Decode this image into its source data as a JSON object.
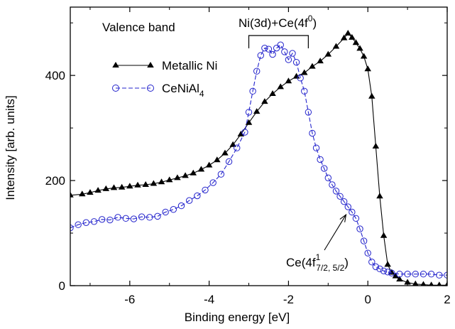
{
  "chart_data": {
    "type": "scatter",
    "title": "",
    "xlabel": "Binding energy [eV]",
    "ylabel": "Intensity [arb. units]",
    "xlim": [
      -7.5,
      2.0
    ],
    "ylim": [
      0,
      530
    ],
    "x_ticks": [
      -6,
      -4,
      -2,
      0,
      2
    ],
    "y_ticks": [
      0,
      200,
      400
    ],
    "x_tick_labels": [
      "-6",
      "-4",
      "-2",
      "0",
      "2"
    ],
    "y_tick_labels": [
      "0",
      "200",
      "400"
    ],
    "grid": false,
    "legend_position": "upper-left",
    "annotations": {
      "panel_label": "Valence band",
      "bracket_label": "Ni(3d)+Ce(4f",
      "bracket_label_sup": "0",
      "bracket_label_end": ")",
      "bracket_range": [
        -3.0,
        -1.5
      ],
      "arrow_label_main": "Ce(4f",
      "arrow_label_sup": "1",
      "arrow_label_sub": "7/2, 5/2",
      "arrow_label_end": ")",
      "arrow_target": [
        -0.55,
        135
      ]
    },
    "series": [
      {
        "name": "Metallic Ni",
        "label_main": "Metallic Ni",
        "color": "#000000",
        "marker": "triangle",
        "x": [
          -7.5,
          -7.2,
          -7.0,
          -6.8,
          -6.6,
          -6.4,
          -6.2,
          -6.0,
          -5.8,
          -5.6,
          -5.4,
          -5.2,
          -5.0,
          -4.8,
          -4.6,
          -4.4,
          -4.2,
          -4.0,
          -3.8,
          -3.6,
          -3.4,
          -3.2,
          -3.0,
          -2.8,
          -2.6,
          -2.4,
          -2.2,
          -2.0,
          -1.8,
          -1.6,
          -1.4,
          -1.2,
          -1.0,
          -0.8,
          -0.6,
          -0.5,
          -0.4,
          -0.3,
          -0.2,
          -0.1,
          0.0,
          0.1,
          0.2,
          0.3,
          0.4,
          0.5,
          0.6,
          0.7,
          0.8,
          1.0,
          1.2,
          1.4,
          1.6,
          1.8,
          2.0
        ],
        "y": [
          172,
          174,
          177,
          181,
          184,
          186,
          187,
          189,
          191,
          192,
          194,
          197,
          201,
          205,
          209,
          214,
          221,
          229,
          239,
          252,
          268,
          288,
          310,
          331,
          350,
          365,
          378,
          389,
          398,
          405,
          417,
          427,
          440,
          455,
          471,
          480,
          472,
          462,
          451,
          436,
          412,
          360,
          265,
          170,
          95,
          40,
          25,
          18,
          12,
          6,
          3,
          2,
          1,
          1,
          1
        ]
      },
      {
        "name": "CeNiAl4",
        "label_main": "CeNiAl",
        "label_sub": "4",
        "color": "#2323cc",
        "marker": "circle",
        "x": [
          -7.5,
          -7.3,
          -7.1,
          -6.9,
          -6.7,
          -6.5,
          -6.3,
          -6.1,
          -5.9,
          -5.7,
          -5.5,
          -5.3,
          -5.1,
          -4.9,
          -4.7,
          -4.5,
          -4.3,
          -4.1,
          -3.9,
          -3.7,
          -3.5,
          -3.3,
          -3.1,
          -3.0,
          -2.9,
          -2.8,
          -2.7,
          -2.6,
          -2.5,
          -2.4,
          -2.3,
          -2.2,
          -2.1,
          -2.0,
          -1.9,
          -1.8,
          -1.7,
          -1.6,
          -1.5,
          -1.4,
          -1.3,
          -1.2,
          -1.1,
          -1.0,
          -0.9,
          -0.8,
          -0.7,
          -0.6,
          -0.5,
          -0.4,
          -0.3,
          -0.2,
          -0.1,
          0.0,
          0.1,
          0.2,
          0.3,
          0.4,
          0.5,
          0.6,
          0.8,
          1.0,
          1.2,
          1.4,
          1.6,
          1.8,
          2.0
        ],
        "y": [
          110,
          116,
          120,
          122,
          126,
          125,
          130,
          128,
          127,
          131,
          130,
          132,
          140,
          145,
          152,
          162,
          171,
          182,
          196,
          212,
          236,
          262,
          292,
          330,
          370,
          408,
          438,
          452,
          450,
          440,
          452,
          458,
          445,
          430,
          442,
          425,
          395,
          370,
          330,
          290,
          262,
          240,
          223,
          205,
          192,
          180,
          170,
          160,
          150,
          140,
          128,
          108,
          85,
          62,
          45,
          36,
          32,
          28,
          26,
          24,
          22,
          22,
          22,
          22,
          22,
          20,
          20
        ]
      }
    ]
  }
}
